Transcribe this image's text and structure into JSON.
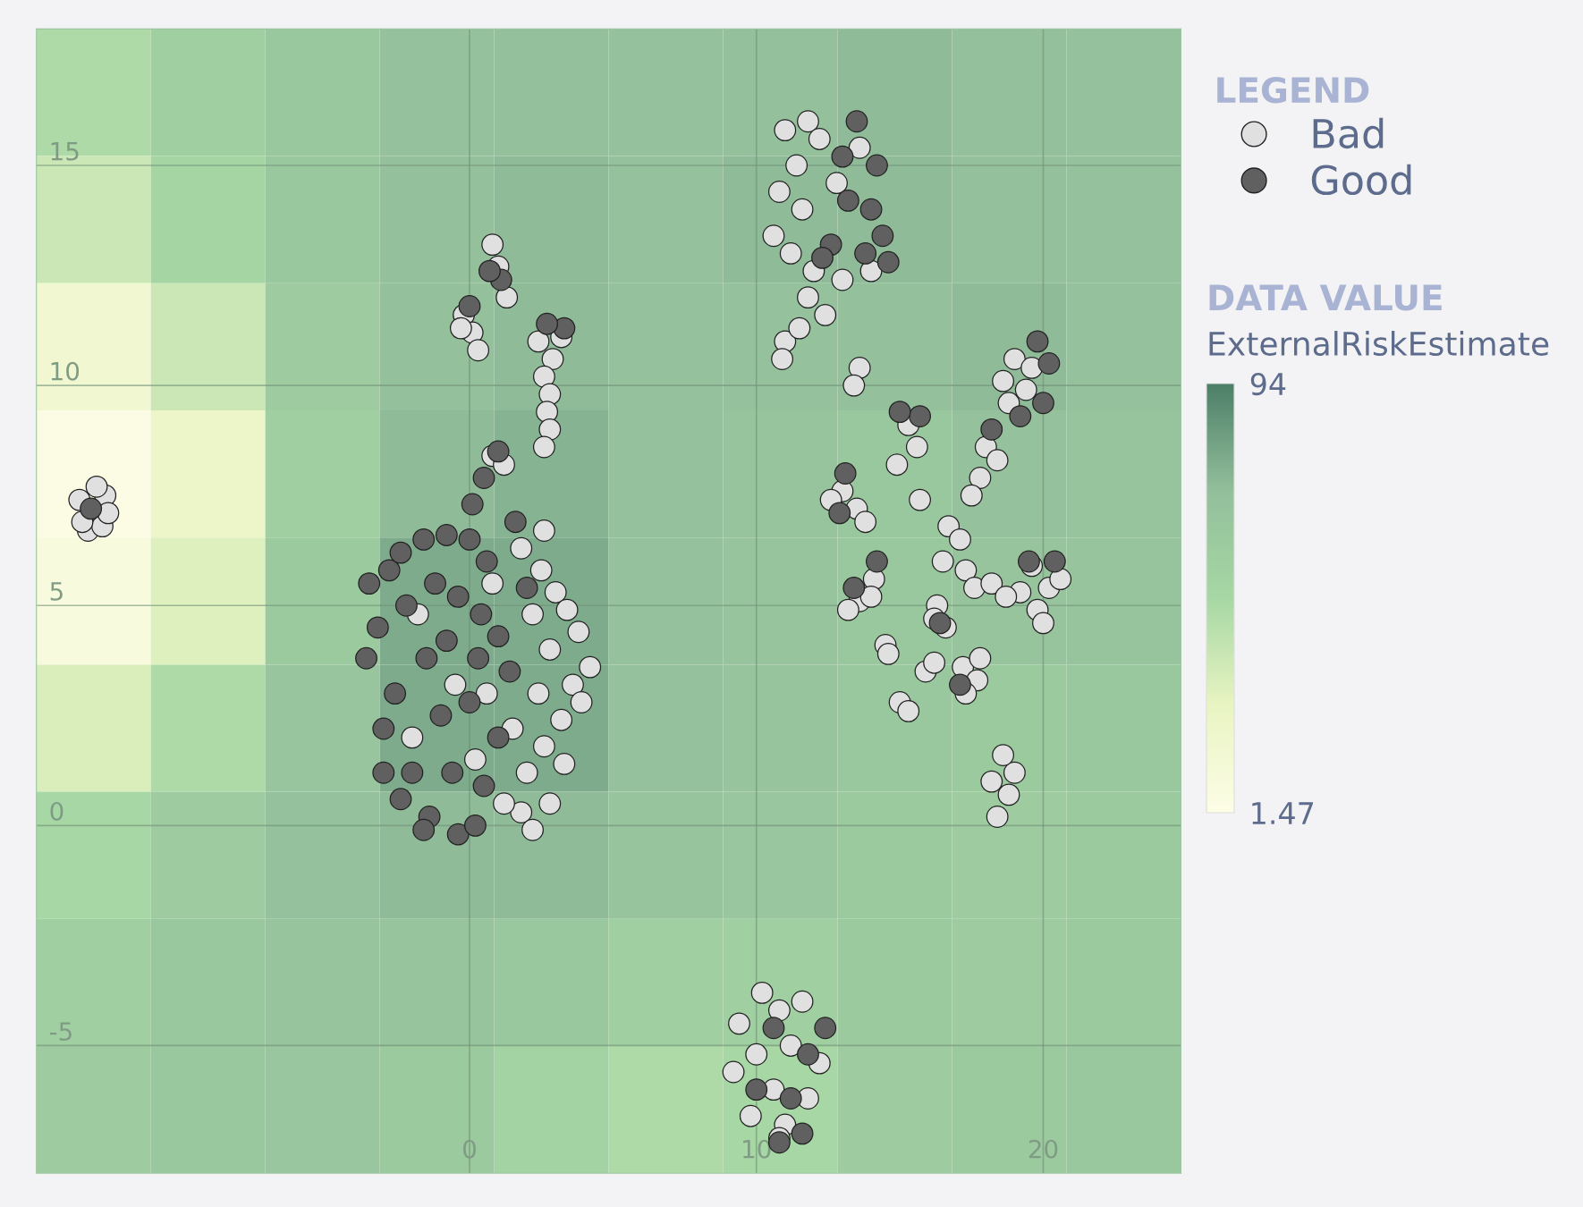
{
  "chart_data": [
    {
      "type": "heatmap",
      "categories": [
        null,
        null,
        null,
        null,
        null,
        null,
        null,
        null,
        null,
        null
      ],
      "y_categories": [
        null,
        null,
        null,
        null,
        null,
        null,
        null,
        null,
        null
      ],
      "clabel": "ExternalRiskEstimate",
      "annotations": [
        "DATA VALUE"
      ],
      "clim": [
        1.47,
        94
      ],
      "cticks": [
        94,
        1.47
      ],
      "cells": [
        [
          45,
          55,
          62,
          68,
          70,
          68,
          70,
          72,
          70,
          68
        ],
        [
          35,
          50,
          62,
          70,
          72,
          68,
          72,
          72,
          70,
          68
        ],
        [
          15,
          35,
          58,
          70,
          72,
          68,
          68,
          70,
          72,
          68
        ],
        [
          3,
          20,
          55,
          72,
          75,
          68,
          66,
          62,
          68,
          66
        ],
        [
          8,
          28,
          60,
          78,
          78,
          68,
          66,
          62,
          66,
          66
        ],
        [
          30,
          45,
          65,
          78,
          78,
          68,
          66,
          62,
          60,
          62
        ],
        [
          48,
          58,
          68,
          72,
          72,
          66,
          64,
          60,
          58,
          60
        ],
        [
          55,
          62,
          66,
          66,
          62,
          55,
          55,
          60,
          58,
          60
        ],
        [
          58,
          62,
          64,
          60,
          52,
          45,
          48,
          58,
          60,
          62
        ]
      ]
    },
    {
      "type": "scatter",
      "xlim": [
        -15.1,
        24.8
      ],
      "ylim": [
        -7.9,
        18.1
      ],
      "xticks": [
        0,
        10,
        20
      ],
      "yticks": [
        -5,
        0,
        5,
        10,
        15
      ],
      "grid": true,
      "marker": "circle",
      "legend": "top right",
      "legend_title": "LEGEND",
      "series": [
        {
          "name": "Bad",
          "color": "#e0e0e0",
          "x": [
            -13.6,
            -12.7,
            -13.3,
            -12.8,
            -13.0,
            -13.5,
            -12.6,
            1.8,
            2.6,
            2.5,
            3.0,
            3.4,
            3.8,
            4.2,
            3.6,
            2.8,
            2.2,
            3.2,
            2.6,
            3.9,
            2.0,
            2.8,
            1.8,
            2.2,
            3.3,
            1.2,
            2.4,
            1.5,
            0.6,
            -1.8,
            -0.5,
            0.8,
            -2.0,
            0.2,
            0.8,
            1.0,
            -0.2,
            0.1,
            0.3,
            -0.3,
            2.4,
            2.9,
            3.2,
            2.6,
            2.8,
            2.7,
            2.8,
            2.6,
            0.8,
            1.2,
            1.3,
            11.0,
            11.8,
            11.4,
            10.8,
            11.6,
            10.6,
            11.2,
            12.0,
            11.8,
            12.4,
            13.0,
            12.8,
            13.6,
            12.2,
            14.0,
            11.0,
            11.5,
            10.9,
            13.6,
            13.4,
            18.6,
            19.0,
            19.4,
            18.8,
            19.6,
            15.3,
            15.6,
            14.9,
            15.7,
            18.0,
            17.8,
            18.4,
            17.5,
            13.0,
            13.5,
            13.8,
            12.6,
            16.7,
            17.1,
            16.5,
            17.3,
            19.6,
            20.2,
            19.8,
            20.6,
            19.2,
            20.0,
            17.6,
            18.2,
            18.7,
            14.1,
            13.6,
            13.2,
            14.0,
            16.3,
            16.6,
            16.2,
            14.5,
            14.6,
            17.2,
            17.7,
            17.3,
            17.8,
            15.0,
            15.3,
            15.9,
            16.2,
            18.2,
            18.8,
            18.4,
            19.0,
            18.6,
            9.4,
            10.2,
            10.8,
            9.2,
            10.0,
            10.6,
            9.8,
            11.2,
            11.6,
            12.2,
            11.0,
            10.8,
            11.8
          ],
          "values": [
            7.4,
            7.5,
            6.7,
            6.8,
            7.7,
            6.9,
            7.1,
            6.3,
            6.7,
            5.8,
            5.3,
            4.9,
            4.4,
            3.6,
            3.2,
            4.0,
            4.8,
            2.4,
            1.8,
            2.8,
            1.2,
            0.5,
            0.3,
            -0.1,
            1.4,
            0.5,
            3.0,
            2.2,
            3.0,
            4.8,
            3.2,
            5.5,
            2.0,
            1.5,
            13.2,
            12.7,
            11.6,
            11.2,
            10.8,
            11.3,
            11.0,
            10.6,
            11.1,
            10.2,
            9.8,
            9.4,
            9.0,
            8.6,
            8.4,
            8.2,
            12.0,
            15.8,
            16.0,
            15.0,
            14.4,
            14.0,
            13.4,
            13.0,
            12.6,
            12.0,
            11.6,
            12.4,
            14.6,
            15.4,
            15.6,
            12.6,
            11.0,
            11.3,
            10.6,
            10.4,
            10.0,
            10.1,
            10.6,
            9.9,
            9.6,
            10.4,
            9.1,
            8.6,
            8.2,
            7.4,
            8.6,
            7.9,
            8.3,
            7.5,
            7.6,
            7.2,
            6.9,
            7.4,
            6.8,
            6.5,
            6.0,
            5.8,
            5.9,
            5.4,
            4.9,
            5.6,
            5.3,
            4.6,
            5.4,
            5.5,
            5.2,
            5.6,
            5.1,
            4.9,
            5.2,
            5.0,
            4.5,
            4.7,
            4.1,
            3.9,
            3.6,
            3.3,
            3.0,
            3.8,
            2.8,
            2.6,
            3.5,
            3.7,
            1.0,
            0.7,
            0.2,
            1.2,
            1.6,
            -4.5,
            -3.8,
            -4.2,
            -5.6,
            -5.2,
            -6.0,
            -6.6,
            -5.0,
            -4.0,
            -5.4,
            -6.8,
            -7.1,
            -6.2
          ]
        },
        {
          "name": "Good",
          "color": "#606060",
          "x": [
            -13.2,
            -3.5,
            -3.2,
            -3.6,
            -2.8,
            -2.4,
            -1.6,
            -0.8,
            0.0,
            0.6,
            -2.2,
            -1.2,
            -0.4,
            0.4,
            1.0,
            -2.6,
            -1.5,
            -0.8,
            0.3,
            1.4,
            -3.0,
            -2.0,
            -1.0,
            0.0,
            1.0,
            -2.4,
            -1.4,
            -0.4,
            0.5,
            -1.6,
            0.2,
            1.6,
            2.0,
            -3.0,
            -0.6,
            1.1,
            0.7,
            0.0,
            3.3,
            2.7,
            1.0,
            0.1,
            0.5,
            13.5,
            13.2,
            14.0,
            14.4,
            13.8,
            12.6,
            14.6,
            13.0,
            14.2,
            12.3,
            20.2,
            20.0,
            19.8,
            19.2,
            15.7,
            15.0,
            18.2,
            13.1,
            12.9,
            20.4,
            19.5,
            14.2,
            13.4,
            16.4,
            17.1,
            10.6,
            11.8,
            11.2,
            10.0,
            11.6,
            12.4,
            10.8
          ],
          "values": [
            7.2,
            5.5,
            4.5,
            3.8,
            5.8,
            6.2,
            6.5,
            6.6,
            6.5,
            6.0,
            5.0,
            5.5,
            5.2,
            4.8,
            4.3,
            3.0,
            3.8,
            4.2,
            3.8,
            3.5,
            2.2,
            1.2,
            2.5,
            2.8,
            2.0,
            0.6,
            0.2,
            -0.2,
            0.9,
            -0.1,
            0.0,
            6.9,
            5.4,
            1.2,
            1.2,
            12.4,
            12.6,
            11.8,
            11.3,
            11.4,
            8.5,
            7.3,
            7.9,
            16.0,
            14.2,
            14.0,
            13.4,
            13.0,
            13.2,
            12.8,
            15.2,
            15.0,
            12.9,
            10.5,
            9.6,
            11.0,
            9.3,
            9.3,
            9.4,
            9.0,
            8.0,
            7.1,
            6.0,
            6.0,
            6.0,
            5.4,
            4.6,
            3.2,
            -4.6,
            -5.2,
            -6.2,
            -6.0,
            -7.0,
            -4.6,
            -7.2
          ]
        }
      ]
    }
  ]
}
